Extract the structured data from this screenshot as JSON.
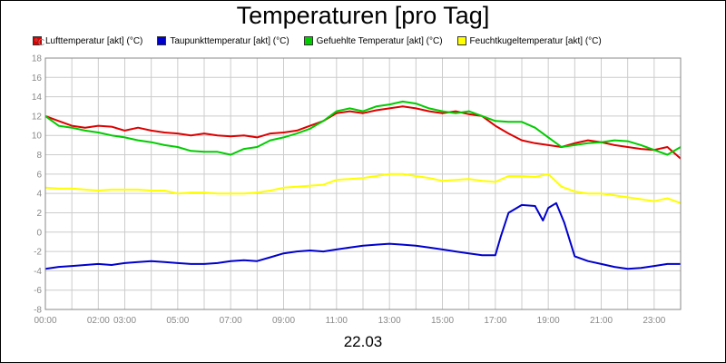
{
  "chart_data": {
    "type": "line",
    "title": "Temperaturen [pro Tag]",
    "y_unit": "°C",
    "date_label": "22.03",
    "ylim": [
      -8,
      18
    ],
    "y_ticks": [
      18,
      16,
      14,
      12,
      10,
      8,
      6,
      4,
      2,
      0,
      -2,
      -4,
      -6,
      -8
    ],
    "x_range_hours": [
      0,
      24
    ],
    "x_ticks": [
      {
        "hour": 0,
        "label": "00:00"
      },
      {
        "hour": 2,
        "label": "02:00"
      },
      {
        "hour": 3,
        "label": "03:00"
      },
      {
        "hour": 5,
        "label": "05:00"
      },
      {
        "hour": 7,
        "label": "07:00"
      },
      {
        "hour": 9,
        "label": "09:00"
      },
      {
        "hour": 11,
        "label": "11:00"
      },
      {
        "hour": 13,
        "label": "13:00"
      },
      {
        "hour": 15,
        "label": "15:00"
      },
      {
        "hour": 17,
        "label": "17:00"
      },
      {
        "hour": 19,
        "label": "19:00"
      },
      {
        "hour": 21,
        "label": "21:00"
      },
      {
        "hour": 23,
        "label": "23:00"
      }
    ],
    "grid": true,
    "legend_position": "top",
    "series": [
      {
        "name": "Lufttemperatur [akt] (°C)",
        "color": "#dd0000",
        "x": [
          0,
          0.5,
          1,
          1.5,
          2,
          2.5,
          3,
          3.5,
          4,
          4.5,
          5,
          5.5,
          6,
          6.5,
          7,
          7.5,
          8,
          8.5,
          9,
          9.5,
          10,
          10.5,
          11,
          11.5,
          12,
          12.5,
          13,
          13.5,
          14,
          14.5,
          15,
          15.5,
          16,
          16.5,
          17,
          17.5,
          18,
          18.5,
          19,
          19.5,
          20,
          20.5,
          21,
          21.5,
          22,
          22.5,
          23,
          23.5,
          24
        ],
        "values": [
          12,
          11.5,
          11,
          10.8,
          11,
          10.9,
          10.5,
          10.8,
          10.5,
          10.3,
          10.2,
          10,
          10.2,
          10,
          9.9,
          10,
          9.8,
          10.2,
          10.3,
          10.5,
          11,
          11.5,
          12.3,
          12.5,
          12.3,
          12.6,
          12.8,
          13,
          12.8,
          12.5,
          12.3,
          12.5,
          12.2,
          12,
          11,
          10.2,
          9.5,
          9.2,
          9,
          8.8,
          9.2,
          9.5,
          9.3,
          9,
          8.8,
          8.6,
          8.5,
          8.8,
          7.6
        ]
      },
      {
        "name": "Taupunkttemperatur [akt] (°C)",
        "color": "#0000cc",
        "x": [
          0,
          0.5,
          1,
          1.5,
          2,
          2.5,
          3,
          3.5,
          4,
          4.5,
          5,
          5.5,
          6,
          6.5,
          7,
          7.5,
          8,
          8.5,
          9,
          9.5,
          10,
          10.5,
          11,
          11.5,
          12,
          12.5,
          13,
          13.5,
          14,
          14.5,
          15,
          15.5,
          16,
          16.5,
          17,
          17.2,
          17.5,
          18,
          18.5,
          18.8,
          19,
          19.3,
          19.6,
          20,
          20.5,
          21,
          21.5,
          22,
          22.5,
          23,
          23.5,
          24
        ],
        "values": [
          -3.8,
          -3.6,
          -3.5,
          -3.4,
          -3.3,
          -3.4,
          -3.2,
          -3.1,
          -3.0,
          -3.1,
          -3.2,
          -3.3,
          -3.3,
          -3.2,
          -3.0,
          -2.9,
          -3.0,
          -2.6,
          -2.2,
          -2.0,
          -1.9,
          -2.0,
          -1.8,
          -1.6,
          -1.4,
          -1.3,
          -1.2,
          -1.3,
          -1.4,
          -1.6,
          -1.8,
          -2.0,
          -2.2,
          -2.4,
          -2.4,
          -0.5,
          2.0,
          2.8,
          2.7,
          1.2,
          2.5,
          3.0,
          1.0,
          -2.5,
          -3.0,
          -3.3,
          -3.6,
          -3.8,
          -3.7,
          -3.5,
          -3.3,
          -3.3
        ]
      },
      {
        "name": "Gefuehlte Temperatur [akt] (°C)",
        "color": "#00cc00",
        "x": [
          0,
          0.5,
          1,
          1.5,
          2,
          2.5,
          3,
          3.5,
          4,
          4.5,
          5,
          5.5,
          6,
          6.5,
          7,
          7.5,
          8,
          8.5,
          9,
          9.5,
          10,
          10.5,
          11,
          11.5,
          12,
          12.5,
          13,
          13.5,
          14,
          14.5,
          15,
          15.5,
          16,
          16.5,
          17,
          17.5,
          18,
          18.5,
          19,
          19.5,
          20,
          20.5,
          21,
          21.5,
          22,
          22.5,
          23,
          23.5,
          24
        ],
        "values": [
          12,
          11,
          10.8,
          10.5,
          10.3,
          10,
          9.8,
          9.5,
          9.3,
          9,
          8.8,
          8.4,
          8.3,
          8.3,
          8.0,
          8.6,
          8.8,
          9.5,
          9.8,
          10.2,
          10.7,
          11.5,
          12.5,
          12.8,
          12.5,
          13,
          13.2,
          13.5,
          13.3,
          12.8,
          12.5,
          12.3,
          12.5,
          12.0,
          11.5,
          11.4,
          11.4,
          10.8,
          9.8,
          8.8,
          9.0,
          9.2,
          9.3,
          9.5,
          9.4,
          9,
          8.5,
          8.0,
          8.8
        ]
      },
      {
        "name": "Feuchtkugeltemperatur [akt] (°C)",
        "color": "#ffff00",
        "x": [
          0,
          0.5,
          1,
          1.5,
          2,
          2.5,
          3,
          3.5,
          4,
          4.5,
          5,
          5.5,
          6,
          6.5,
          7,
          7.5,
          8,
          8.5,
          9,
          9.5,
          10,
          10.5,
          11,
          11.5,
          12,
          12.5,
          13,
          13.5,
          14,
          14.5,
          15,
          15.5,
          16,
          16.5,
          17,
          17.5,
          18,
          18.5,
          19,
          19.5,
          20,
          20.5,
          21,
          21.5,
          22,
          22.5,
          23,
          23.5,
          24
        ],
        "values": [
          4.6,
          4.5,
          4.5,
          4.4,
          4.3,
          4.4,
          4.4,
          4.4,
          4.3,
          4.3,
          4.0,
          4.1,
          4.1,
          4.0,
          4.0,
          4.0,
          4.1,
          4.3,
          4.6,
          4.7,
          4.8,
          4.9,
          5.4,
          5.5,
          5.6,
          5.8,
          6.0,
          6.0,
          5.8,
          5.6,
          5.3,
          5.4,
          5.5,
          5.3,
          5.2,
          5.8,
          5.8,
          5.7,
          6.0,
          4.7,
          4.2,
          4.0,
          4.0,
          3.8,
          3.6,
          3.4,
          3.2,
          3.5,
          3.0
        ]
      }
    ]
  }
}
